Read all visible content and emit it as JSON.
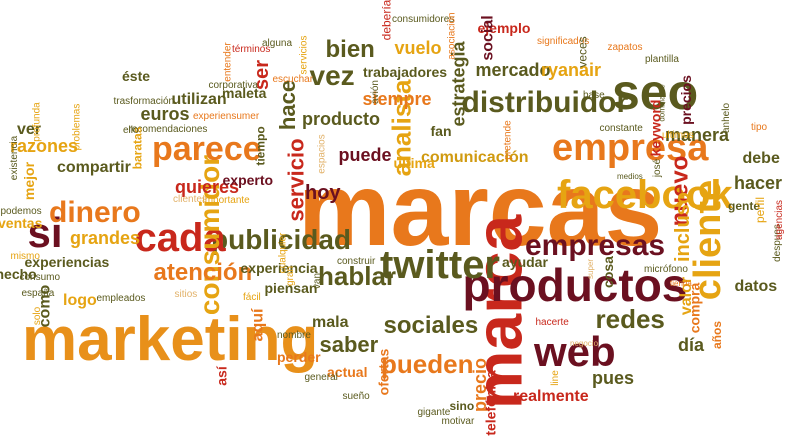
{
  "palette": {
    "orange": "#e8781c",
    "amber": "#e6a412",
    "olive": "#5a5a1e",
    "maroon": "#6b1020",
    "red": "#c8281c",
    "gold": "#d09a10",
    "brown": "#7a4a10",
    "sand": "#e2b26a"
  },
  "words": [
    {
      "text": "marcas",
      "color": "#e8781c"
    },
    {
      "text": "marketing",
      "color": "#e8901a"
    },
    {
      "text": "marca",
      "color": "#c8281c"
    },
    {
      "text": "productos",
      "color": "#6b1020"
    },
    {
      "text": "seo",
      "color": "#5a5a1e"
    },
    {
      "text": "facebook",
      "color": "#e6a412"
    },
    {
      "text": "empresa",
      "color": "#e8781c"
    },
    {
      "text": "cliente",
      "color": "#e6a412"
    },
    {
      "text": "web",
      "color": "#6b1020"
    },
    {
      "text": "twitter",
      "color": "#5a5a1e"
    },
    {
      "text": "empresas",
      "color": "#6b1020"
    },
    {
      "text": "publicidad",
      "color": "#5a5a1e"
    },
    {
      "text": "cada",
      "color": "#c8281c"
    },
    {
      "text": "parece",
      "color": "#e8781c"
    },
    {
      "text": "consumidor",
      "color": "#e6a412"
    },
    {
      "text": "distribuidor",
      "color": "#5a5a1e"
    },
    {
      "text": "si",
      "color": "#6b1020"
    },
    {
      "text": "dinero",
      "color": "#e8781c"
    },
    {
      "text": "hablar",
      "color": "#5a5a1e"
    },
    {
      "text": "sociales",
      "color": "#5a5a1e"
    },
    {
      "text": "redes",
      "color": "#5a5a1e"
    },
    {
      "text": "pueden",
      "color": "#e8781c"
    },
    {
      "text": "servicio",
      "color": "#c8281c"
    },
    {
      "text": "vez",
      "color": "#5a5a1e"
    },
    {
      "text": "bien",
      "color": "#5a5a1e"
    },
    {
      "text": "analista",
      "color": "#e6a412"
    },
    {
      "text": "atención",
      "color": "#e8781c"
    },
    {
      "text": "grandes",
      "color": "#e6a412"
    },
    {
      "text": "quieres",
      "color": "#c8281c"
    },
    {
      "text": "hoy",
      "color": "#6b1020"
    },
    {
      "text": "nuevo",
      "color": "#c8281c"
    },
    {
      "text": "incluso",
      "color": "#e6a412"
    },
    {
      "text": "mercado",
      "color": "#5a5a1e"
    },
    {
      "text": "ryanair",
      "color": "#e6a412"
    },
    {
      "text": "estrategia",
      "color": "#5a5a1e"
    },
    {
      "text": "producto",
      "color": "#5a5a1e"
    },
    {
      "text": "saber",
      "color": "#5a5a1e"
    },
    {
      "text": "puede",
      "color": "#6b1020"
    },
    {
      "text": "siempre",
      "color": "#e8781c"
    },
    {
      "text": "comunicación",
      "color": "#d09a10"
    },
    {
      "text": "manera",
      "color": "#5a5a1e"
    },
    {
      "text": "hacer",
      "color": "#5a5a1e"
    },
    {
      "text": "debe",
      "color": "#5a5a1e"
    },
    {
      "text": "hace",
      "color": "#5a5a1e"
    },
    {
      "text": "ser",
      "color": "#c8281c"
    },
    {
      "text": "euros",
      "color": "#5a5a1e"
    },
    {
      "text": "utilizan",
      "color": "#5a5a1e"
    },
    {
      "text": "compartir",
      "color": "#5a5a1e"
    },
    {
      "text": "razones",
      "color": "#e6a412"
    },
    {
      "text": "experiencias",
      "color": "#5a5a1e"
    },
    {
      "text": "experiencia",
      "color": "#5a5a1e"
    },
    {
      "text": "aquí",
      "color": "#e8781c"
    },
    {
      "text": "mala",
      "color": "#5a5a1e"
    },
    {
      "text": "pues",
      "color": "#5a5a1e"
    },
    {
      "text": "día",
      "color": "#5a5a1e"
    },
    {
      "text": "precio",
      "color": "#e8781c"
    },
    {
      "text": "realmente",
      "color": "#c8281c"
    },
    {
      "text": "ejemplo",
      "color": "#c8281c"
    },
    {
      "text": "social",
      "color": "#6b1020"
    },
    {
      "text": "vuelo",
      "color": "#e6a412"
    },
    {
      "text": "trabajadores",
      "color": "#5a5a1e"
    },
    {
      "text": "datos",
      "color": "#5a5a1e"
    },
    {
      "text": "valor",
      "color": "#e6a412"
    },
    {
      "text": "cosa",
      "color": "#5a5a1e"
    },
    {
      "text": "ayudar",
      "color": "#5a5a1e"
    },
    {
      "text": "telefónica",
      "color": "#c8281c"
    },
    {
      "text": "ofertas",
      "color": "#e8781c"
    },
    {
      "text": "actual",
      "color": "#e8781c"
    },
    {
      "text": "perder",
      "color": "#e8781c"
    },
    {
      "text": "piensan",
      "color": "#5a5a1e"
    },
    {
      "text": "logo",
      "color": "#e6a412"
    },
    {
      "text": "como",
      "color": "#5a5a1e"
    },
    {
      "text": "hecho",
      "color": "#5a5a1e"
    },
    {
      "text": "ventas",
      "color": "#e6a412"
    },
    {
      "text": "ver",
      "color": "#5a5a1e"
    },
    {
      "text": "mejor",
      "color": "#e6a412"
    },
    {
      "text": "así",
      "color": "#c8281c"
    },
    {
      "text": "keyword",
      "color": "#c8281c"
    },
    {
      "text": "precios",
      "color": "#6b1020"
    },
    {
      "text": "gente",
      "color": "#5a5a1e"
    },
    {
      "text": "compra",
      "color": "#e8781c"
    },
    {
      "text": "años",
      "color": "#e8781c"
    },
    {
      "text": "experto",
      "color": "#6b1020"
    },
    {
      "text": "última",
      "color": "#e6a412"
    },
    {
      "text": "fan",
      "color": "#5a5a1e"
    },
    {
      "text": "maleta",
      "color": "#5a5a1e"
    },
    {
      "text": "tiempo",
      "color": "#5a5a1e"
    },
    {
      "text": "recomendaciones",
      "color": "#5a5a1e"
    },
    {
      "text": "baratas",
      "color": "#e6a412"
    },
    {
      "text": "éste",
      "color": "#5a5a1e"
    },
    {
      "text": "debería",
      "color": "#c8281c"
    },
    {
      "text": "consumidores",
      "color": "#5a5a1e"
    },
    {
      "text": "asociación",
      "color": "#e8781c"
    },
    {
      "text": "significados",
      "color": "#e8781c"
    },
    {
      "text": "veces",
      "color": "#5a5a1e"
    },
    {
      "text": "zapatos",
      "color": "#e8781c"
    },
    {
      "text": "plantilla",
      "color": "#5a5a1e"
    },
    {
      "text": "base",
      "color": "#5a5a1e"
    },
    {
      "text": "ultimos",
      "color": "#e6a412"
    },
    {
      "text": "dominante",
      "color": "#5a5a1e"
    },
    {
      "text": "anhelo",
      "color": "#5a5a1e"
    },
    {
      "text": "tipo",
      "color": "#e8781c"
    },
    {
      "text": "constante",
      "color": "#5a5a1e"
    },
    {
      "text": "josé",
      "color": "#5a5a1e"
    },
    {
      "text": "medios",
      "color": "#5a5a1e"
    },
    {
      "text": "perfil",
      "color": "#e6a412"
    },
    {
      "text": "despues",
      "color": "#5a5a1e"
    },
    {
      "text": "agencias",
      "color": "#c8281c"
    },
    {
      "text": "micrófono",
      "color": "#5a5a1e"
    },
    {
      "text": "tienda",
      "color": "#e8781c"
    },
    {
      "text": "super",
      "color": "#e2b26a"
    },
    {
      "text": "hacerte",
      "color": "#c8281c"
    },
    {
      "text": "negocio",
      "color": "#e2b26a"
    },
    {
      "text": "line",
      "color": "#e6a412"
    },
    {
      "text": "motivar",
      "color": "#5a5a1e"
    },
    {
      "text": "gigante",
      "color": "#5a5a1e"
    },
    {
      "text": "sueño",
      "color": "#5a5a1e"
    },
    {
      "text": "general",
      "color": "#5a5a1e"
    },
    {
      "text": "nombre",
      "color": "#5a5a1e"
    },
    {
      "text": "fácil",
      "color": "#e6a412"
    },
    {
      "text": "sitios",
      "color": "#e2b26a"
    },
    {
      "text": "empleados",
      "color": "#5a5a1e"
    },
    {
      "text": "solo",
      "color": "#e6a412"
    },
    {
      "text": "españa",
      "color": "#5a5a1e"
    },
    {
      "text": "consumo",
      "color": "#5a5a1e"
    },
    {
      "text": "mismo",
      "color": "#e6a412"
    },
    {
      "text": "podemos",
      "color": "#5a5a1e"
    },
    {
      "text": "existencia",
      "color": "#5a5a1e"
    },
    {
      "text": "profunda",
      "color": "#e6a412"
    },
    {
      "text": "problemas",
      "color": "#e6a412"
    },
    {
      "text": "trasformación",
      "color": "#5a5a1e"
    },
    {
      "text": "ello",
      "color": "#5a5a1e"
    },
    {
      "text": "entender",
      "color": "#e8781c"
    },
    {
      "text": "términos",
      "color": "#c8281c"
    },
    {
      "text": "corporativa",
      "color": "#5a5a1e"
    },
    {
      "text": "escuchar",
      "color": "#e8781c"
    },
    {
      "text": "servicios",
      "color": "#e6a412"
    },
    {
      "text": "alguna",
      "color": "#5a5a1e"
    },
    {
      "text": "experiensumer",
      "color": "#e8781c"
    },
    {
      "text": "importante",
      "color": "#e6a412"
    },
    {
      "text": "clientes",
      "color": "#e2b26a"
    },
    {
      "text": "espacios",
      "color": "#e2b26a"
    },
    {
      "text": "construir",
      "color": "#5a5a1e"
    },
    {
      "text": "cualquier",
      "color": "#e6a412"
    },
    {
      "text": "gran",
      "color": "#e6a412"
    },
    {
      "text": "van",
      "color": "#5a5a1e"
    },
    {
      "text": "avión",
      "color": "#5a5a1e"
    },
    {
      "text": "pretende",
      "color": "#e8781c"
    },
    {
      "text": "sino",
      "color": "#5a5a1e"
    }
  ]
}
